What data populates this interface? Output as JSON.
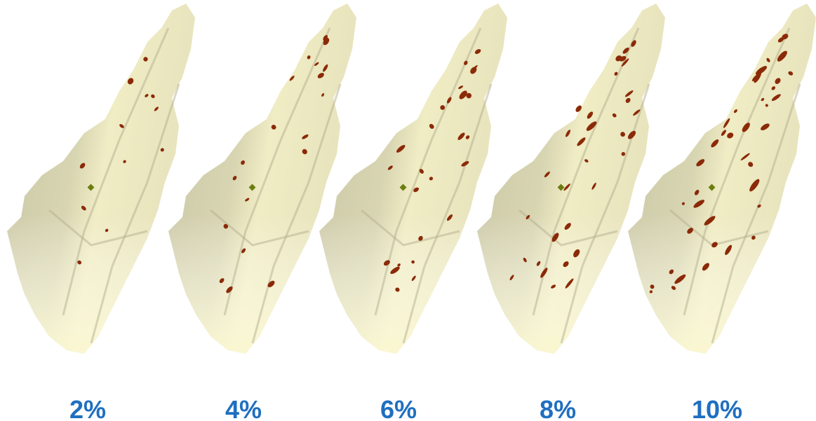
{
  "panels": [
    {
      "label": "2%"
    },
    {
      "label": "4%"
    },
    {
      "label": "6%"
    },
    {
      "label": "8%"
    },
    {
      "label": "10%"
    }
  ]
}
